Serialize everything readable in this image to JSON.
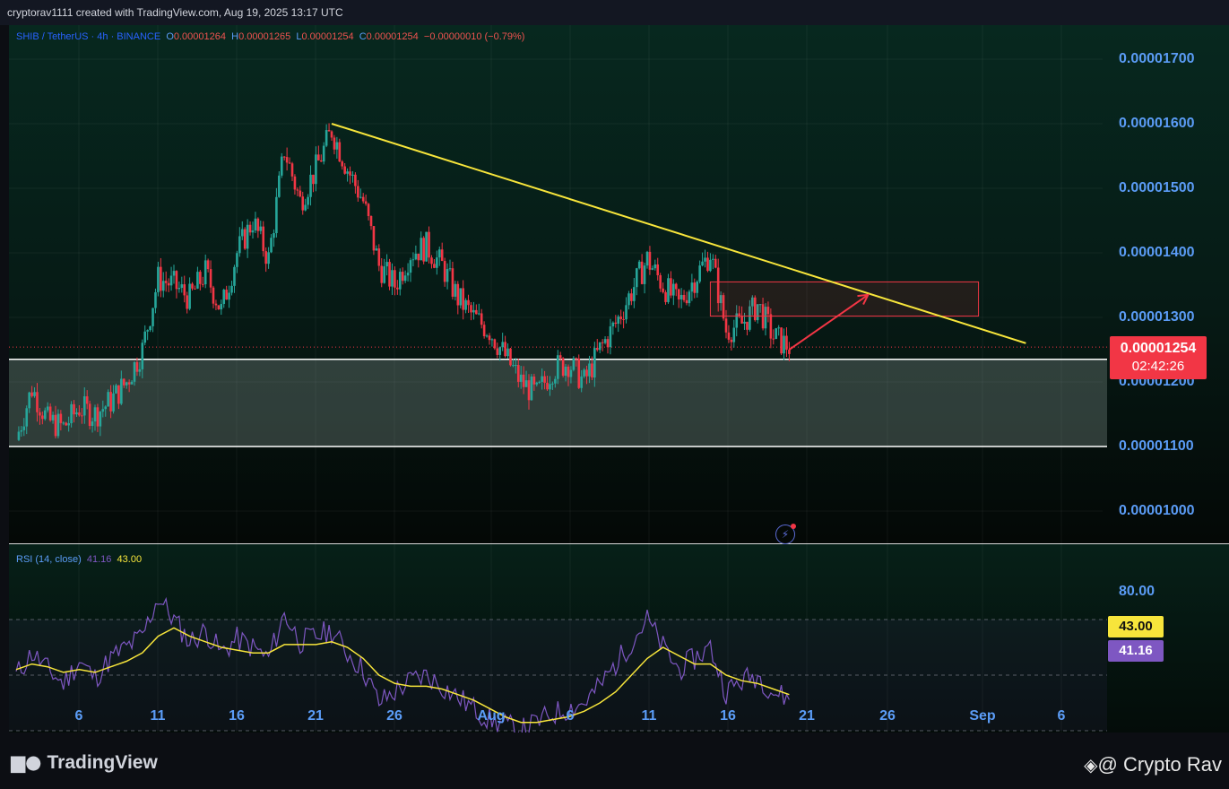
{
  "header": {
    "attribution": "cryptorav1111 created with TradingView.com, Aug 19, 2025 13:17 UTC"
  },
  "legend": {
    "symbol": "SHIB / TetherUS · 4h · BINANCE",
    "o_label": "O",
    "o_value": "0.00001264",
    "h_label": "H",
    "h_value": "0.00001265",
    "l_label": "L",
    "l_value": "0.00001254",
    "c_label": "C",
    "c_value": "0.00001254",
    "change": "−0.00000010 (−0.79%)"
  },
  "rsi_legend": {
    "label": "RSI (14, close)",
    "rsi_value": "41.16",
    "ma_value": "43.00"
  },
  "price_tag": {
    "price": "0.00001254",
    "countdown": "02:42:26"
  },
  "rsi_tags": {
    "ma": "43.00",
    "rsi": "41.16",
    "level_80": "80.00"
  },
  "branding": {
    "logo": "TradingView",
    "watermark": "@ Crypto Rav"
  },
  "colors": {
    "up": "#26a69a",
    "down": "#f23645",
    "trendline": "#f7e53b",
    "rsi_line": "#7e57c2",
    "rsi_ma": "#f7e53b",
    "axis_text": "#5b9cf6"
  },
  "chart_data": {
    "type": "candlestick",
    "y_axis_ticks": [
      "0.00001700",
      "0.00001600",
      "0.00001500",
      "0.00001400",
      "0.00001300",
      "0.00001200",
      "0.00001100",
      "0.00001000"
    ],
    "x_axis_ticks": [
      "6",
      "11",
      "16",
      "21",
      "26",
      "Aug",
      "6",
      "11",
      "16",
      "21",
      "26",
      "Sep",
      "6"
    ],
    "price_path": [
      [
        "Jul 1",
        1.11e-05
      ],
      [
        "Jul 2",
        1.19e-05
      ],
      [
        "Jul 3",
        1.14e-05
      ],
      [
        "Jul 4",
        1.13e-05
      ],
      [
        "Jul 5",
        1.16e-05
      ],
      [
        "Jul 6",
        1.15e-05
      ],
      [
        "Jul 7",
        1.17e-05
      ],
      [
        "Jul 8",
        1.2e-05
      ],
      [
        "Jul 9",
        1.25e-05
      ],
      [
        "Jul 10",
        1.36e-05
      ],
      [
        "Jul 11",
        1.35e-05
      ],
      [
        "Jul 12",
        1.33e-05
      ],
      [
        "Jul 13",
        1.37e-05
      ],
      [
        "Jul 14",
        1.31e-05
      ],
      [
        "Jul 15",
        1.4e-05
      ],
      [
        "Jul 16",
        1.45e-05
      ],
      [
        "Jul 17",
        1.39e-05
      ],
      [
        "Jul 18",
        1.56e-05
      ],
      [
        "Jul 19",
        1.48e-05
      ],
      [
        "Jul 20",
        1.53e-05
      ],
      [
        "Jul 21",
        1.59e-05
      ],
      [
        "Jul 22",
        1.53e-05
      ],
      [
        "Jul 23",
        1.48e-05
      ],
      [
        "Jul 24",
        1.38e-05
      ],
      [
        "Jul 25",
        1.35e-05
      ],
      [
        "Jul 26",
        1.4e-05
      ],
      [
        "Jul 27",
        1.41e-05
      ],
      [
        "Jul 28",
        1.38e-05
      ],
      [
        "Jul 29",
        1.33e-05
      ],
      [
        "Jul 30",
        1.3e-05
      ],
      [
        "Jul 31",
        1.28e-05
      ],
      [
        "Aug 1",
        1.24e-05
      ],
      [
        "Aug 2",
        1.2e-05
      ],
      [
        "Aug 3",
        1.18e-05
      ],
      [
        "Aug 4",
        1.22e-05
      ],
      [
        "Aug 5",
        1.23e-05
      ],
      [
        "Aug 6",
        1.2e-05
      ],
      [
        "Aug 7",
        1.25e-05
      ],
      [
        "Aug 8",
        1.29e-05
      ],
      [
        "Aug 9",
        1.34e-05
      ],
      [
        "Aug 10",
        1.39e-05
      ],
      [
        "Aug 11",
        1.35e-05
      ],
      [
        "Aug 12",
        1.32e-05
      ],
      [
        "Aug 13",
        1.36e-05
      ],
      [
        "Aug 14",
        1.4e-05
      ],
      [
        "Aug 15",
        1.28e-05
      ],
      [
        "Aug 16",
        1.29e-05
      ],
      [
        "Aug 17",
        1.32e-05
      ],
      [
        "Aug 18",
        1.27e-05
      ],
      [
        "Aug 19",
        1.254e-05
      ]
    ],
    "trendline": {
      "from": [
        "Jul 21",
        1.6e-05
      ],
      "to": [
        "Sep 3",
        1.26e-05
      ]
    },
    "support_zone": {
      "top": 1.235e-05,
      "bottom": 1.1e-05
    },
    "resistance_box": {
      "from": "Aug 14",
      "to": "Aug 31",
      "top": 1.355e-05,
      "bottom": 1.302e-05
    },
    "projection_arrow": {
      "from": [
        "Aug 19",
        1.25e-05
      ],
      "to": [
        "Aug 24",
        1.335e-05
      ]
    },
    "current_price": 1.254e-05,
    "rsi": {
      "length": 14,
      "source": "close",
      "upper_band": 70,
      "mid_band": 50,
      "lower_band": 30,
      "rsi_values": [
        50,
        58,
        52,
        47,
        55,
        49,
        56,
        60,
        64,
        78,
        70,
        62,
        66,
        58,
        63,
        60,
        56,
        72,
        62,
        64,
        66,
        58,
        52,
        40,
        44,
        48,
        50,
        46,
        42,
        38,
        34,
        32,
        30,
        33,
        36,
        38,
        40,
        46,
        54,
        62,
        70,
        60,
        52,
        56,
        60,
        44,
        48,
        50,
        44,
        41.16
      ],
      "ma_values": [
        52,
        54,
        53,
        51,
        52,
        51,
        53,
        55,
        58,
        64,
        67,
        64,
        62,
        60,
        59,
        58,
        58,
        61,
        61,
        61,
        62,
        60,
        56,
        50,
        47,
        46,
        46,
        45,
        43,
        41,
        38,
        35,
        33,
        33,
        34,
        35,
        37,
        40,
        44,
        50,
        56,
        60,
        57,
        54,
        54,
        50,
        48,
        47,
        45,
        43
      ]
    }
  }
}
